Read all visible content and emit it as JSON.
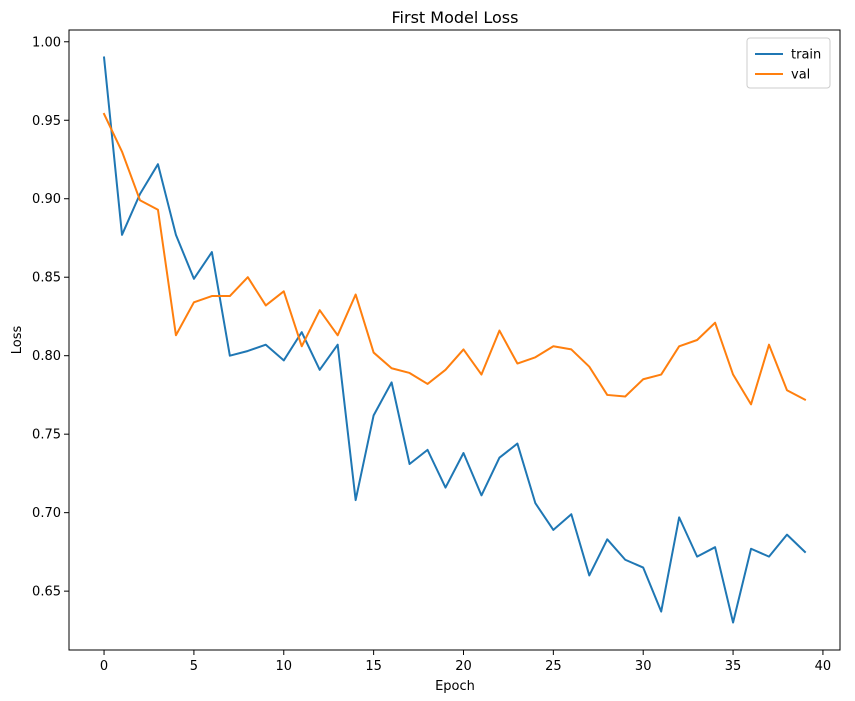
{
  "chart_data": {
    "type": "line",
    "title": "First Model Loss",
    "xlabel": "Epoch",
    "ylabel": "Loss",
    "xlim": [
      -1.95,
      40.95
    ],
    "ylim": [
      0.6125,
      1.0075
    ],
    "xticks": [
      0,
      5,
      10,
      15,
      20,
      25,
      30,
      35,
      40
    ],
    "xtick_labels": [
      "0",
      "5",
      "10",
      "15",
      "20",
      "25",
      "30",
      "35",
      "40"
    ],
    "yticks": [
      0.65,
      0.7,
      0.75,
      0.8,
      0.85,
      0.9,
      0.95,
      1.0
    ],
    "ytick_labels": [
      "0.65",
      "0.70",
      "0.75",
      "0.80",
      "0.85",
      "0.90",
      "0.95",
      "1.00"
    ],
    "grid": false,
    "legend_position": "top-right",
    "x": [
      0,
      1,
      2,
      3,
      4,
      5,
      6,
      7,
      8,
      9,
      10,
      11,
      12,
      13,
      14,
      15,
      16,
      17,
      18,
      19,
      20,
      21,
      22,
      23,
      24,
      25,
      26,
      27,
      28,
      29,
      30,
      31,
      32,
      33,
      34,
      35,
      36,
      37,
      38,
      39
    ],
    "series": [
      {
        "name": "train",
        "color": "#1f77b4",
        "values": [
          0.99,
          0.877,
          0.903,
          0.922,
          0.877,
          0.849,
          0.866,
          0.8,
          0.803,
          0.807,
          0.797,
          0.815,
          0.791,
          0.807,
          0.708,
          0.762,
          0.783,
          0.731,
          0.74,
          0.716,
          0.738,
          0.711,
          0.735,
          0.744,
          0.706,
          0.689,
          0.699,
          0.66,
          0.683,
          0.67,
          0.665,
          0.637,
          0.697,
          0.672,
          0.678,
          0.63,
          0.677,
          0.672,
          0.686,
          0.675
        ]
      },
      {
        "name": "val",
        "color": "#ff7f0e",
        "values": [
          0.954,
          0.93,
          0.899,
          0.893,
          0.813,
          0.834,
          0.838,
          0.838,
          0.85,
          0.832,
          0.841,
          0.806,
          0.829,
          0.813,
          0.839,
          0.802,
          0.792,
          0.789,
          0.782,
          0.791,
          0.804,
          0.788,
          0.816,
          0.795,
          0.799,
          0.806,
          0.804,
          0.793,
          0.775,
          0.774,
          0.785,
          0.788,
          0.806,
          0.81,
          0.821,
          0.788,
          0.769,
          0.807,
          0.778,
          0.772
        ]
      }
    ]
  }
}
